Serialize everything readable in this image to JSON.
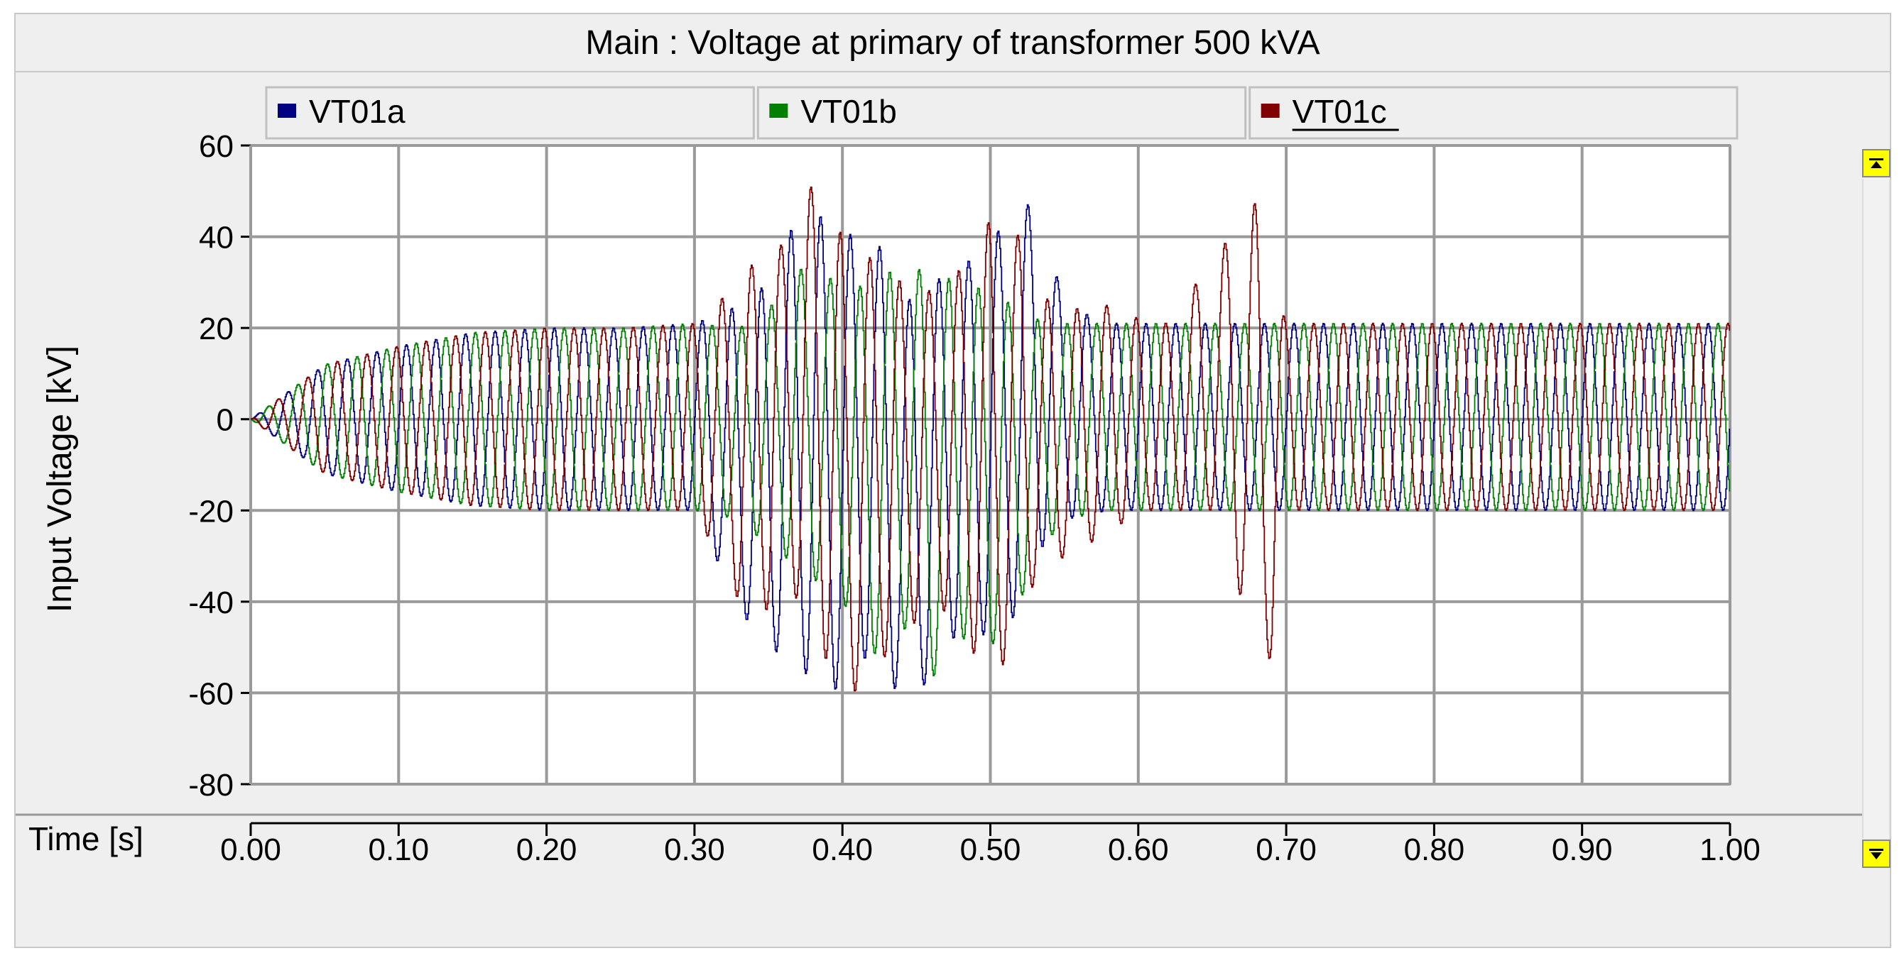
{
  "window": {
    "title": "Main : Voltage at primary of transformer 500 kVA"
  },
  "legend": {
    "items": [
      {
        "label": "VT01a",
        "color": "#000080"
      },
      {
        "label": "VT01b",
        "color": "#008000"
      },
      {
        "label": "VT01c",
        "color": "#800000"
      }
    ]
  },
  "scrollbar": {
    "up_icon": "arrow-up-icon",
    "down_icon": "arrow-down-icon"
  },
  "chart_data": {
    "type": "line",
    "title": "",
    "xlabel": "Time [s]",
    "ylabel": "Input Voltage [kV]",
    "xlim": [
      0.0,
      1.0
    ],
    "ylim": [
      -80,
      60
    ],
    "xticks": [
      "0.00",
      "0.10",
      "0.20",
      "0.30",
      "0.40",
      "0.50",
      "0.60",
      "0.70",
      "0.80",
      "0.90",
      "1.00"
    ],
    "yticks": [
      "60",
      "40",
      "20",
      "0",
      "-20",
      "-40",
      "-60",
      "-80"
    ],
    "grid": true,
    "legend_position": "top",
    "series": [
      {
        "name": "VT01a",
        "color": "#000080",
        "x": [
          0.0,
          0.05,
          0.1,
          0.15,
          0.2,
          0.25,
          0.3,
          0.33,
          0.35,
          0.36,
          0.38,
          0.4,
          0.42,
          0.44,
          0.46,
          0.48,
          0.5,
          0.52,
          0.53,
          0.55,
          0.58,
          0.6,
          0.62,
          0.65,
          0.7,
          0.75,
          0.8,
          0.85,
          0.9,
          0.95,
          1.0
        ],
        "min": [
          0,
          -12,
          -16,
          -19,
          -20,
          -20,
          -20,
          -42,
          -50,
          -52,
          -57,
          -60,
          -50,
          -62,
          -57,
          -45,
          -48,
          -42,
          -30,
          -22,
          -20,
          -20,
          -20,
          -20,
          -20,
          -20,
          -20,
          -20,
          -20,
          -20,
          -20
        ],
        "max": [
          0,
          12,
          16,
          19,
          20,
          20,
          21,
          25,
          30,
          40,
          46,
          40,
          42,
          25,
          30,
          33,
          40,
          45,
          49,
          25,
          21,
          21,
          21,
          21,
          21,
          21,
          21,
          21,
          21,
          21,
          21
        ]
      },
      {
        "name": "VT01b",
        "color": "#008000",
        "x": [
          0.0,
          0.05,
          0.1,
          0.15,
          0.2,
          0.25,
          0.3,
          0.33,
          0.35,
          0.36,
          0.38,
          0.4,
          0.42,
          0.44,
          0.46,
          0.48,
          0.5,
          0.52,
          0.53,
          0.55,
          0.58,
          0.6,
          0.62,
          0.65,
          0.7,
          0.75,
          0.8,
          0.85,
          0.9,
          0.95,
          1.0
        ],
        "min": [
          0,
          -12,
          -16,
          -19,
          -20,
          -20,
          -20,
          -22,
          -28,
          -30,
          -35,
          -40,
          -52,
          -45,
          -57,
          -48,
          -50,
          -40,
          -30,
          -22,
          -20,
          -20,
          -20,
          -20,
          -20,
          -20,
          -20,
          -20,
          -20,
          -20,
          -20
        ],
        "max": [
          0,
          12,
          16,
          19,
          20,
          20,
          21,
          20,
          24,
          30,
          35,
          28,
          30,
          34,
          32,
          30,
          28,
          24,
          22,
          21,
          21,
          21,
          21,
          21,
          21,
          21,
          21,
          21,
          21,
          21,
          21
        ]
      },
      {
        "name": "VT01c",
        "color": "#800000",
        "x": [
          0.0,
          0.05,
          0.1,
          0.15,
          0.2,
          0.25,
          0.3,
          0.33,
          0.35,
          0.36,
          0.38,
          0.4,
          0.42,
          0.44,
          0.46,
          0.48,
          0.5,
          0.52,
          0.53,
          0.55,
          0.58,
          0.6,
          0.62,
          0.65,
          0.68,
          0.69,
          0.7,
          0.75,
          0.8,
          0.85,
          0.9,
          0.95,
          1.0
        ],
        "min": [
          0,
          -12,
          -16,
          -19,
          -20,
          -20,
          -20,
          -40,
          -42,
          -35,
          -45,
          -63,
          -55,
          -48,
          -40,
          -45,
          -60,
          -45,
          -35,
          -30,
          -25,
          -20,
          -20,
          -20,
          -50,
          -53,
          -20,
          -20,
          -20,
          -20,
          -20,
          -20,
          -20
        ],
        "max": [
          0,
          12,
          16,
          19,
          20,
          20,
          21,
          30,
          39,
          38,
          52,
          40,
          35,
          30,
          28,
          33,
          44,
          40,
          28,
          24,
          25,
          22,
          21,
          35,
          48,
          30,
          21,
          21,
          21,
          21,
          21,
          21,
          21
        ]
      }
    ]
  }
}
